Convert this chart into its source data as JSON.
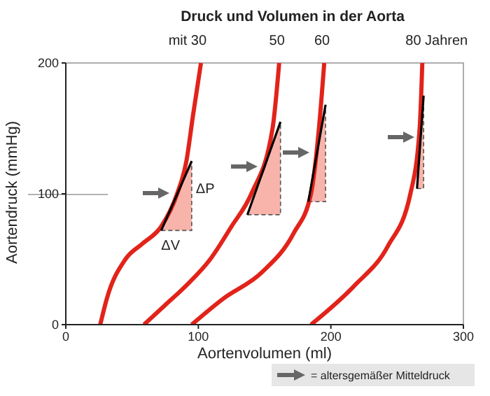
{
  "chart_data": {
    "type": "line",
    "title": "Druck und Volumen in der Aorta",
    "xlabel": "Aortenvolumen (ml)",
    "ylabel": "Aortendruck (mmHg)",
    "xlim": [
      0,
      300
    ],
    "xticks": [
      0,
      100,
      200,
      300
    ],
    "ylim": [
      0,
      200
    ],
    "yticks": [
      0,
      100,
      200
    ],
    "grid": false,
    "marker": "none",
    "series": [
      {
        "name": "mit 30",
        "color": "#e2231a",
        "x": [
          26,
          31,
          45,
          58,
          72,
          84,
          91,
          96,
          102
        ],
        "values": [
          0,
          20,
          50,
          62,
          75,
          100,
          125,
          160,
          200
        ]
      },
      {
        "name": "50",
        "color": "#e2231a",
        "x": [
          59,
          75,
          91,
          109,
          125,
          140,
          156,
          161
        ],
        "values": [
          0,
          15,
          30,
          50,
          75,
          100,
          150,
          200
        ]
      },
      {
        "name": "60",
        "color": "#e2231a",
        "x": [
          95,
          119,
          148,
          172,
          185,
          191,
          195
        ],
        "values": [
          0,
          20,
          40,
          70,
          100,
          150,
          200
        ]
      },
      {
        "name": "80 Jahren",
        "color": "#e2231a",
        "x": [
          185,
          218,
          243,
          260,
          267,
          269
        ],
        "values": [
          0,
          30,
          60,
          100,
          150,
          200
        ]
      },
      {
        "type": "line",
        "color": "#000000",
        "x": [
          72,
          95
        ],
        "values": [
          72,
          125
        ]
      },
      {
        "type": "line",
        "color": "#000000",
        "x": [
          137,
          162
        ],
        "values": [
          84,
          155
        ]
      },
      {
        "type": "line",
        "color": "#000000",
        "x": [
          183,
          196
        ],
        "values": [
          94,
          168
        ]
      },
      {
        "type": "line",
        "color": "#000000",
        "x": [
          265,
          270
        ],
        "values": [
          104,
          175
        ]
      }
    ],
    "annotations": [
      "ΔP",
      "ΔV",
      "= altersgemäßer Mitteldruck"
    ]
  }
}
